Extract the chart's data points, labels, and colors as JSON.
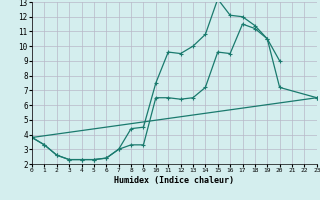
{
  "xlabel": "Humidex (Indice chaleur)",
  "background_color": "#d4eeee",
  "grid_color": "#b8b8c8",
  "line_color": "#1a7a6e",
  "xlim": [
    0,
    23
  ],
  "ylim": [
    2,
    13
  ],
  "xticks": [
    0,
    1,
    2,
    3,
    4,
    5,
    6,
    7,
    8,
    9,
    10,
    11,
    12,
    13,
    14,
    15,
    16,
    17,
    18,
    19,
    20,
    21,
    22,
    23
  ],
  "yticks": [
    2,
    3,
    4,
    5,
    6,
    7,
    8,
    9,
    10,
    11,
    12,
    13
  ],
  "series": [
    {
      "x": [
        0,
        1,
        2,
        3,
        4,
        5,
        6,
        7,
        8,
        9,
        10,
        11,
        12,
        13,
        14,
        15,
        16,
        17,
        18,
        19,
        20
      ],
      "y": [
        3.8,
        3.3,
        2.6,
        2.3,
        2.3,
        2.3,
        2.4,
        3.0,
        4.4,
        4.5,
        7.5,
        9.6,
        9.5,
        10.0,
        10.8,
        13.2,
        12.1,
        12.0,
        11.4,
        10.5,
        9.0
      ]
    },
    {
      "x": [
        0,
        1,
        2,
        3,
        4,
        5,
        6,
        7,
        8,
        9,
        10,
        11,
        12,
        13,
        14,
        15,
        16,
        17,
        18,
        19,
        20,
        23
      ],
      "y": [
        3.8,
        3.3,
        2.6,
        2.3,
        2.3,
        2.3,
        2.4,
        3.0,
        3.3,
        3.3,
        6.5,
        6.5,
        6.4,
        6.5,
        7.2,
        9.6,
        9.5,
        11.5,
        11.2,
        10.5,
        7.2,
        6.5
      ]
    },
    {
      "x": [
        0,
        23
      ],
      "y": [
        3.8,
        6.5
      ]
    }
  ]
}
